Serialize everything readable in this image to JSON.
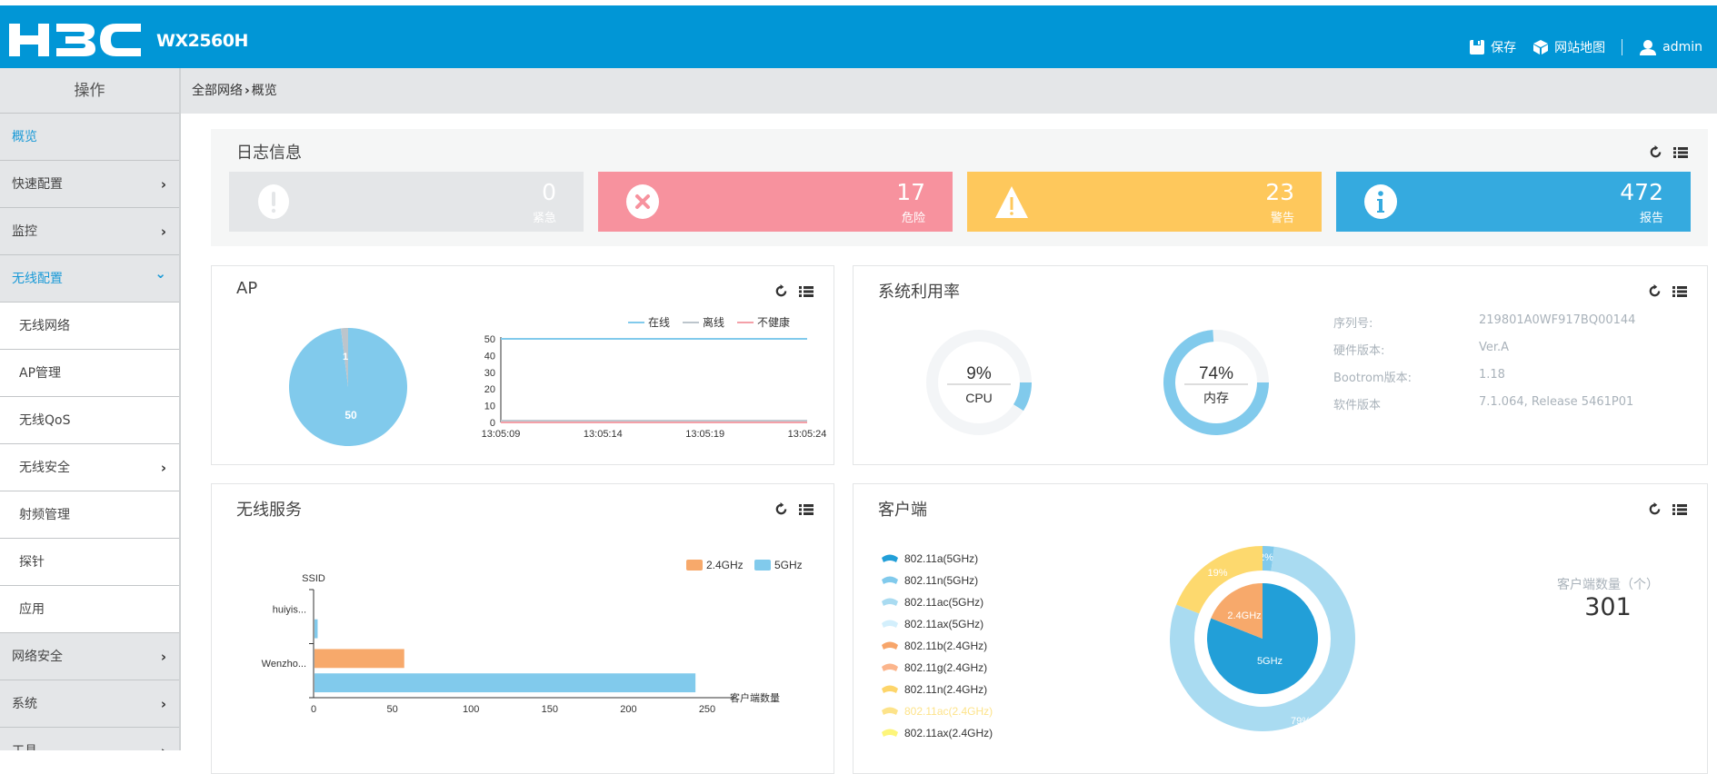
{
  "header": {
    "logo": "H3C",
    "model": "WX2560H",
    "save_label": "保存",
    "sitemap_label": "网站地图",
    "user_label": "admin",
    "brand_color": "#0196d6"
  },
  "sidebar": {
    "title": "操作",
    "items": [
      {
        "label": "概览",
        "active": true
      },
      {
        "label": "快速配置",
        "chevron": "right"
      },
      {
        "label": "监控",
        "chevron": "right"
      },
      {
        "label": "无线配置",
        "chevron": "down",
        "active": true
      },
      {
        "label": "无线网络",
        "sub": true
      },
      {
        "label": "AP管理",
        "sub": true
      },
      {
        "label": "无线QoS",
        "sub": true
      },
      {
        "label": "无线安全",
        "sub": true,
        "chevron": "right"
      },
      {
        "label": "射频管理",
        "sub": true
      },
      {
        "label": "探针",
        "sub": true
      },
      {
        "label": "应用",
        "sub": true
      },
      {
        "label": "网络安全",
        "chevron": "right"
      },
      {
        "label": "系统",
        "chevron": "right"
      },
      {
        "label": "工具",
        "chevron": "right"
      }
    ]
  },
  "breadcrumb": {
    "root": "全部网络",
    "separator": "›",
    "current": "概览"
  },
  "log_panel": {
    "title": "日志信息",
    "tiles": [
      {
        "label": "紧急",
        "value": "0",
        "icon": "exclamation-circle-icon",
        "color": "#e4e6e8"
      },
      {
        "label": "危险",
        "value": "17",
        "icon": "x-circle-icon",
        "color": "#f7929e"
      },
      {
        "label": "警告",
        "value": "23",
        "icon": "warning-triangle-icon",
        "color": "#fec85c"
      },
      {
        "label": "报告",
        "value": "472",
        "icon": "info-circle-icon",
        "color": "#35aadf"
      }
    ]
  },
  "ap_panel": {
    "title": "AP",
    "pie": {
      "online": 50,
      "offline": 1,
      "online_label": "50",
      "offline_label": "1"
    },
    "legend": [
      "在线",
      "离线",
      "不健康"
    ]
  },
  "system_panel": {
    "title": "系统利用率",
    "cpu": {
      "percent": 9,
      "text": "9%",
      "label": "CPU"
    },
    "memory": {
      "percent": 74,
      "text": "74%",
      "label": "内存"
    },
    "info": [
      {
        "key": "序列号:",
        "value": "219801A0WF917BQ00144"
      },
      {
        "key": "硬件版本:",
        "value": "Ver.A"
      },
      {
        "key": "Bootrom版本:",
        "value": "1.18"
      },
      {
        "key": "软件版本",
        "value": "7.1.064, Release 5461P01"
      }
    ]
  },
  "service_panel": {
    "title": "无线服务"
  },
  "client_panel": {
    "title": "客户端",
    "count_label": "客户端数量（个）",
    "count": "301",
    "inner_labels": {
      "g24": "2.4GHz",
      "g5": "5GHz"
    },
    "outer_labels": {
      "n5": "2%",
      "ac5": "79%",
      "n24": "19%"
    },
    "legend": [
      {
        "label": "802.11a(5GHz)",
        "color": "#229fd8"
      },
      {
        "label": "802.11n(5GHz)",
        "color": "#81caec"
      },
      {
        "label": "802.11ac(5GHz)",
        "color": "#a9dbf1"
      },
      {
        "label": "802.11ax(5GHz)",
        "color": "#d3effc"
      },
      {
        "label": "802.11b(2.4GHz)",
        "color": "#f7a56a"
      },
      {
        "label": "802.11g(2.4GHz)",
        "color": "#fbb58c"
      },
      {
        "label": "802.11n(2.4GHz)",
        "color": "#fdd56a"
      },
      {
        "label": "802.11ac(2.4GHz)",
        "color": "#fde38a",
        "dimmed": true
      },
      {
        "label": "802.11ax(2.4GHz)",
        "color": "#fdf57a"
      }
    ]
  },
  "chart_data": [
    {
      "type": "pie",
      "title": "AP",
      "categories": [
        "在线",
        "离线"
      ],
      "values": [
        50,
        1
      ],
      "colors": [
        "#81caec",
        "#bcc5cc"
      ]
    },
    {
      "type": "line",
      "title": "AP",
      "x": [
        "13:05:09",
        "13:05:14",
        "13:05:19",
        "13:05:24"
      ],
      "series": [
        {
          "name": "在线",
          "values": [
            50,
            50,
            50,
            50
          ],
          "color": "#81caec"
        },
        {
          "name": "离线",
          "values": [
            1,
            1,
            1,
            1
          ],
          "color": "#bcc5cc"
        },
        {
          "name": "不健康",
          "values": [
            0,
            0,
            0,
            0
          ],
          "color": "#f4a0a8"
        }
      ],
      "yticks": [
        0,
        10,
        20,
        30,
        40,
        50
      ],
      "ylim": [
        0,
        50
      ],
      "legend": "top-right"
    },
    {
      "type": "bar",
      "orientation": "horizontal",
      "title": "无线服务",
      "ylabel": "SSID",
      "xlabel": "客户端数量",
      "categories": [
        "huiyis...",
        "Wenzho..."
      ],
      "series": [
        {
          "name": "2.4GHz",
          "values": [
            0,
            57
          ],
          "color": "#f7a96b"
        },
        {
          "name": "5GHz",
          "values": [
            2,
            242
          ],
          "color": "#81caec"
        }
      ],
      "xticks": [
        0,
        50,
        100,
        150,
        200,
        250
      ],
      "xlim": [
        0,
        250
      ],
      "legend": "top-right"
    },
    {
      "type": "pie",
      "title": "客户端",
      "inner": {
        "categories": [
          "5GHz",
          "2.4GHz"
        ],
        "values": [
          81,
          19
        ],
        "colors": [
          "#229fd8",
          "#f7a96b"
        ]
      },
      "outer": {
        "categories": [
          "802.11n(5GHz)",
          "802.11ac(5GHz)",
          "802.11n(2.4GHz)"
        ],
        "values": [
          2,
          79,
          19
        ],
        "colors": [
          "#81caec",
          "#a9dbf1",
          "#fdd96e"
        ]
      }
    }
  ]
}
